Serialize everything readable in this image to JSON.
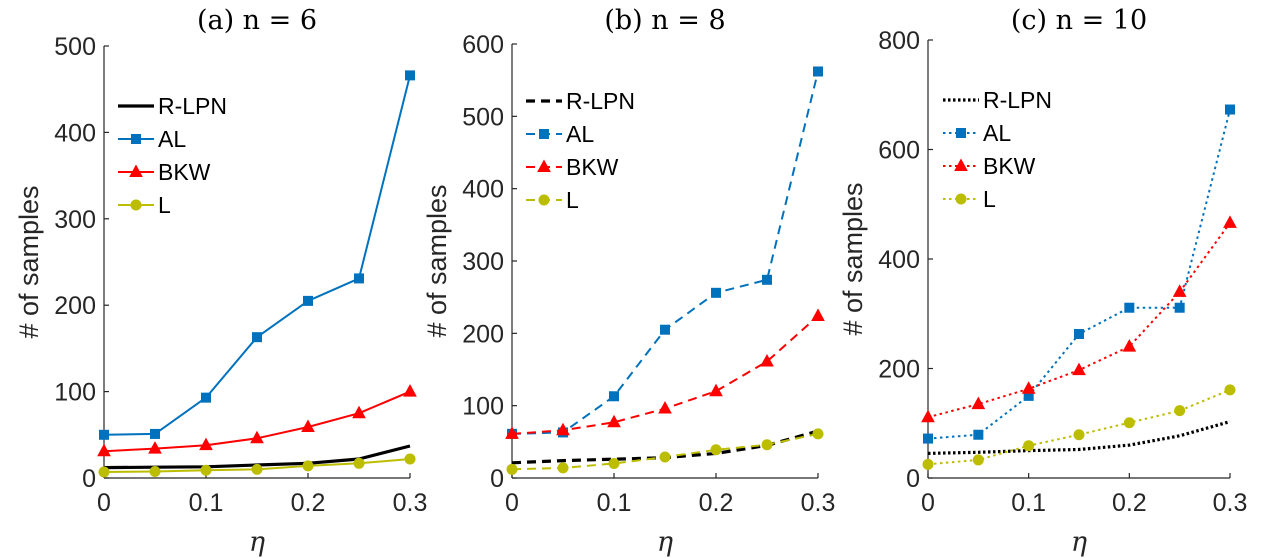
{
  "chart_data": [
    {
      "type": "line",
      "title": "(a) n = 6",
      "xlabel": "η",
      "ylabel": "# of samples",
      "xlim": [
        0,
        0.3
      ],
      "ylim": [
        0,
        500
      ],
      "x": [
        0,
        0.05,
        0.1,
        0.15,
        0.2,
        0.25,
        0.3
      ],
      "xticks": [
        0,
        0.1,
        0.2,
        0.3
      ],
      "xtick_labels": [
        "0",
        "0.1",
        "0.2",
        "0.3"
      ],
      "yticks": [
        0,
        100,
        200,
        300,
        400,
        500
      ],
      "ytick_labels": [
        "0",
        "100",
        "200",
        "300",
        "400",
        "500"
      ],
      "line_style": "solid",
      "legend_position": "top-left",
      "grid": false,
      "series": [
        {
          "name": "R-LPN",
          "color": "#000000",
          "marker": "none",
          "values": [
            12,
            12.5,
            13,
            15,
            17,
            22,
            37
          ]
        },
        {
          "name": "AL",
          "color": "#0072BD",
          "marker": "square",
          "values": [
            50,
            51,
            93,
            163,
            205,
            231,
            466
          ]
        },
        {
          "name": "BKW",
          "color": "#FF0000",
          "marker": "triangle",
          "values": [
            31,
            34,
            38,
            46,
            59,
            75,
            100
          ]
        },
        {
          "name": "L",
          "color": "#BDBD00",
          "marker": "circle",
          "values": [
            7,
            7.5,
            9,
            10,
            14,
            17,
            22
          ]
        }
      ]
    },
    {
      "type": "line",
      "title": "(b) n = 8",
      "xlabel": "η",
      "ylabel": "# of samples",
      "xlim": [
        0,
        0.3
      ],
      "ylim": [
        0,
        600
      ],
      "x": [
        0,
        0.05,
        0.1,
        0.15,
        0.2,
        0.25,
        0.3
      ],
      "xticks": [
        0,
        0.1,
        0.2,
        0.3
      ],
      "xtick_labels": [
        "0",
        "0.1",
        "0.2",
        "0.3"
      ],
      "yticks": [
        0,
        100,
        200,
        300,
        400,
        500,
        600
      ],
      "ytick_labels": [
        "0",
        "100",
        "200",
        "300",
        "400",
        "500",
        "600"
      ],
      "line_style": "dashed",
      "legend_position": "top-left",
      "grid": false,
      "series": [
        {
          "name": "R-LPN",
          "color": "#000000",
          "marker": "none",
          "values": [
            21,
            24,
            26,
            28,
            34,
            45,
            65
          ]
        },
        {
          "name": "AL",
          "color": "#0072BD",
          "marker": "square",
          "values": [
            61,
            63,
            113,
            205,
            256,
            274,
            562
          ]
        },
        {
          "name": "BKW",
          "color": "#FF0000",
          "marker": "triangle",
          "values": [
            61,
            66,
            77,
            96,
            120,
            161,
            224
          ]
        },
        {
          "name": "L",
          "color": "#BDBD00",
          "marker": "circle",
          "values": [
            12,
            14,
            20,
            29,
            39,
            46,
            61
          ]
        }
      ]
    },
    {
      "type": "line",
      "title": "(c) n = 10",
      "xlabel": "η",
      "ylabel": "# of samples",
      "xlim": [
        0,
        0.3
      ],
      "ylim": [
        0,
        800
      ],
      "x": [
        0,
        0.05,
        0.1,
        0.15,
        0.2,
        0.25,
        0.3
      ],
      "xticks": [
        0,
        0.1,
        0.2,
        0.3
      ],
      "xtick_labels": [
        "0",
        "0.1",
        "0.2",
        "0.3"
      ],
      "yticks": [
        0,
        200,
        400,
        600,
        800
      ],
      "ytick_labels": [
        "0",
        "200",
        "400",
        "600",
        "800"
      ],
      "line_style": "dotted",
      "legend_position": "top-left",
      "grid": false,
      "series": [
        {
          "name": "R-LPN",
          "color": "#000000",
          "marker": "none",
          "values": [
            45,
            47,
            50,
            52,
            60,
            77,
            103
          ]
        },
        {
          "name": "AL",
          "color": "#0072BD",
          "marker": "square",
          "values": [
            72,
            79,
            150,
            263,
            311,
            311,
            673
          ]
        },
        {
          "name": "BKW",
          "color": "#FF0000",
          "marker": "triangle",
          "values": [
            111,
            135,
            163,
            197,
            240,
            340,
            466
          ]
        },
        {
          "name": "L",
          "color": "#BDBD00",
          "marker": "circle",
          "values": [
            25,
            33,
            59,
            79,
            101,
            123,
            161
          ]
        }
      ]
    }
  ]
}
